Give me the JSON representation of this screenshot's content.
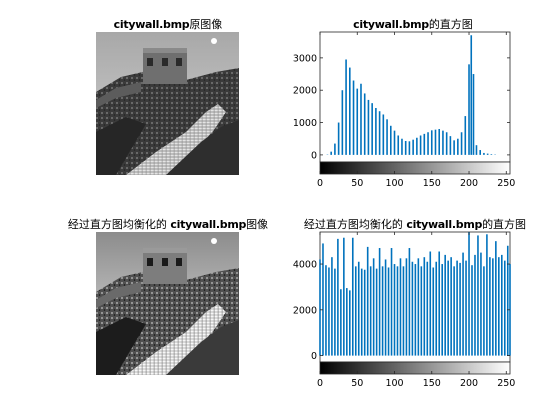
{
  "titles": {
    "original_image": {
      "name": "citywall.bmp",
      "suffix": "原图像"
    },
    "original_hist": {
      "name": "citywall.bmp",
      "suffix": "的直方图"
    },
    "equalized_image": {
      "prefix": "经过直方图均衡化的 ",
      "name": "citywall.bmp",
      "suffix": "图像"
    },
    "equalized_hist": {
      "prefix": "经过直方图均衡化的 ",
      "name": "citywall.bmp",
      "suffix": "的直方图"
    }
  },
  "colors": {
    "bar": "#0072BD",
    "axis": "#262626",
    "grid_tick": "#262626"
  },
  "chart_data": [
    {
      "type": "bar",
      "x": [
        0,
        5,
        10,
        15,
        20,
        25,
        30,
        35,
        40,
        45,
        50,
        55,
        60,
        65,
        70,
        75,
        80,
        85,
        90,
        95,
        100,
        105,
        110,
        115,
        120,
        125,
        130,
        135,
        140,
        145,
        150,
        155,
        160,
        165,
        170,
        175,
        180,
        185,
        190,
        195,
        200,
        203,
        206,
        210,
        215,
        220,
        225,
        230,
        235,
        240,
        245,
        250,
        255
      ],
      "values": [
        0,
        0,
        10,
        100,
        350,
        1000,
        2000,
        2950,
        2700,
        2300,
        2050,
        2200,
        1900,
        1700,
        1600,
        1450,
        1350,
        1250,
        1100,
        900,
        750,
        600,
        500,
        430,
        420,
        470,
        530,
        600,
        650,
        700,
        760,
        780,
        800,
        750,
        700,
        580,
        450,
        500,
        700,
        1200,
        2800,
        3700,
        2500,
        300,
        150,
        60,
        40,
        20,
        10,
        0,
        0,
        0,
        0
      ],
      "xlim": [
        0,
        255
      ],
      "ylim": [
        -220,
        3800
      ],
      "xticks": [
        0,
        50,
        100,
        150,
        200,
        250
      ],
      "yticks": [
        0,
        1000,
        2000,
        3000
      ],
      "grayscale_bar": true
    },
    {
      "type": "bar",
      "x": [
        0,
        4,
        8,
        12,
        16,
        20,
        24,
        28,
        32,
        36,
        40,
        44,
        48,
        52,
        56,
        60,
        64,
        68,
        72,
        76,
        80,
        84,
        88,
        92,
        96,
        100,
        104,
        108,
        112,
        116,
        120,
        124,
        128,
        132,
        136,
        140,
        144,
        148,
        152,
        156,
        160,
        164,
        168,
        172,
        176,
        180,
        184,
        188,
        192,
        196,
        200,
        204,
        208,
        212,
        216,
        220,
        224,
        228,
        232,
        236,
        240,
        244,
        248,
        252,
        255
      ],
      "values": [
        4200,
        4900,
        3950,
        3850,
        4300,
        3800,
        5100,
        2900,
        5150,
        2950,
        2850,
        5150,
        3900,
        4100,
        3800,
        3750,
        4750,
        3900,
        4250,
        3800,
        4700,
        3900,
        4200,
        3850,
        4700,
        4000,
        3900,
        4250,
        3900,
        4250,
        4700,
        4100,
        4000,
        4250,
        3900,
        4300,
        4100,
        4550,
        3850,
        4100,
        4550,
        4000,
        4400,
        4150,
        4300,
        3900,
        4150,
        4050,
        4500,
        4150,
        5400,
        3950,
        4400,
        5250,
        4500,
        3900,
        5300,
        4300,
        4250,
        5000,
        4300,
        4400,
        4150,
        4800,
        4000
      ],
      "xlim": [
        0,
        255
      ],
      "ylim": [
        -280,
        5400
      ],
      "xticks": [
        0,
        50,
        100,
        150,
        200,
        250
      ],
      "yticks": [
        0,
        2000,
        4000
      ],
      "grayscale_bar": true
    }
  ]
}
